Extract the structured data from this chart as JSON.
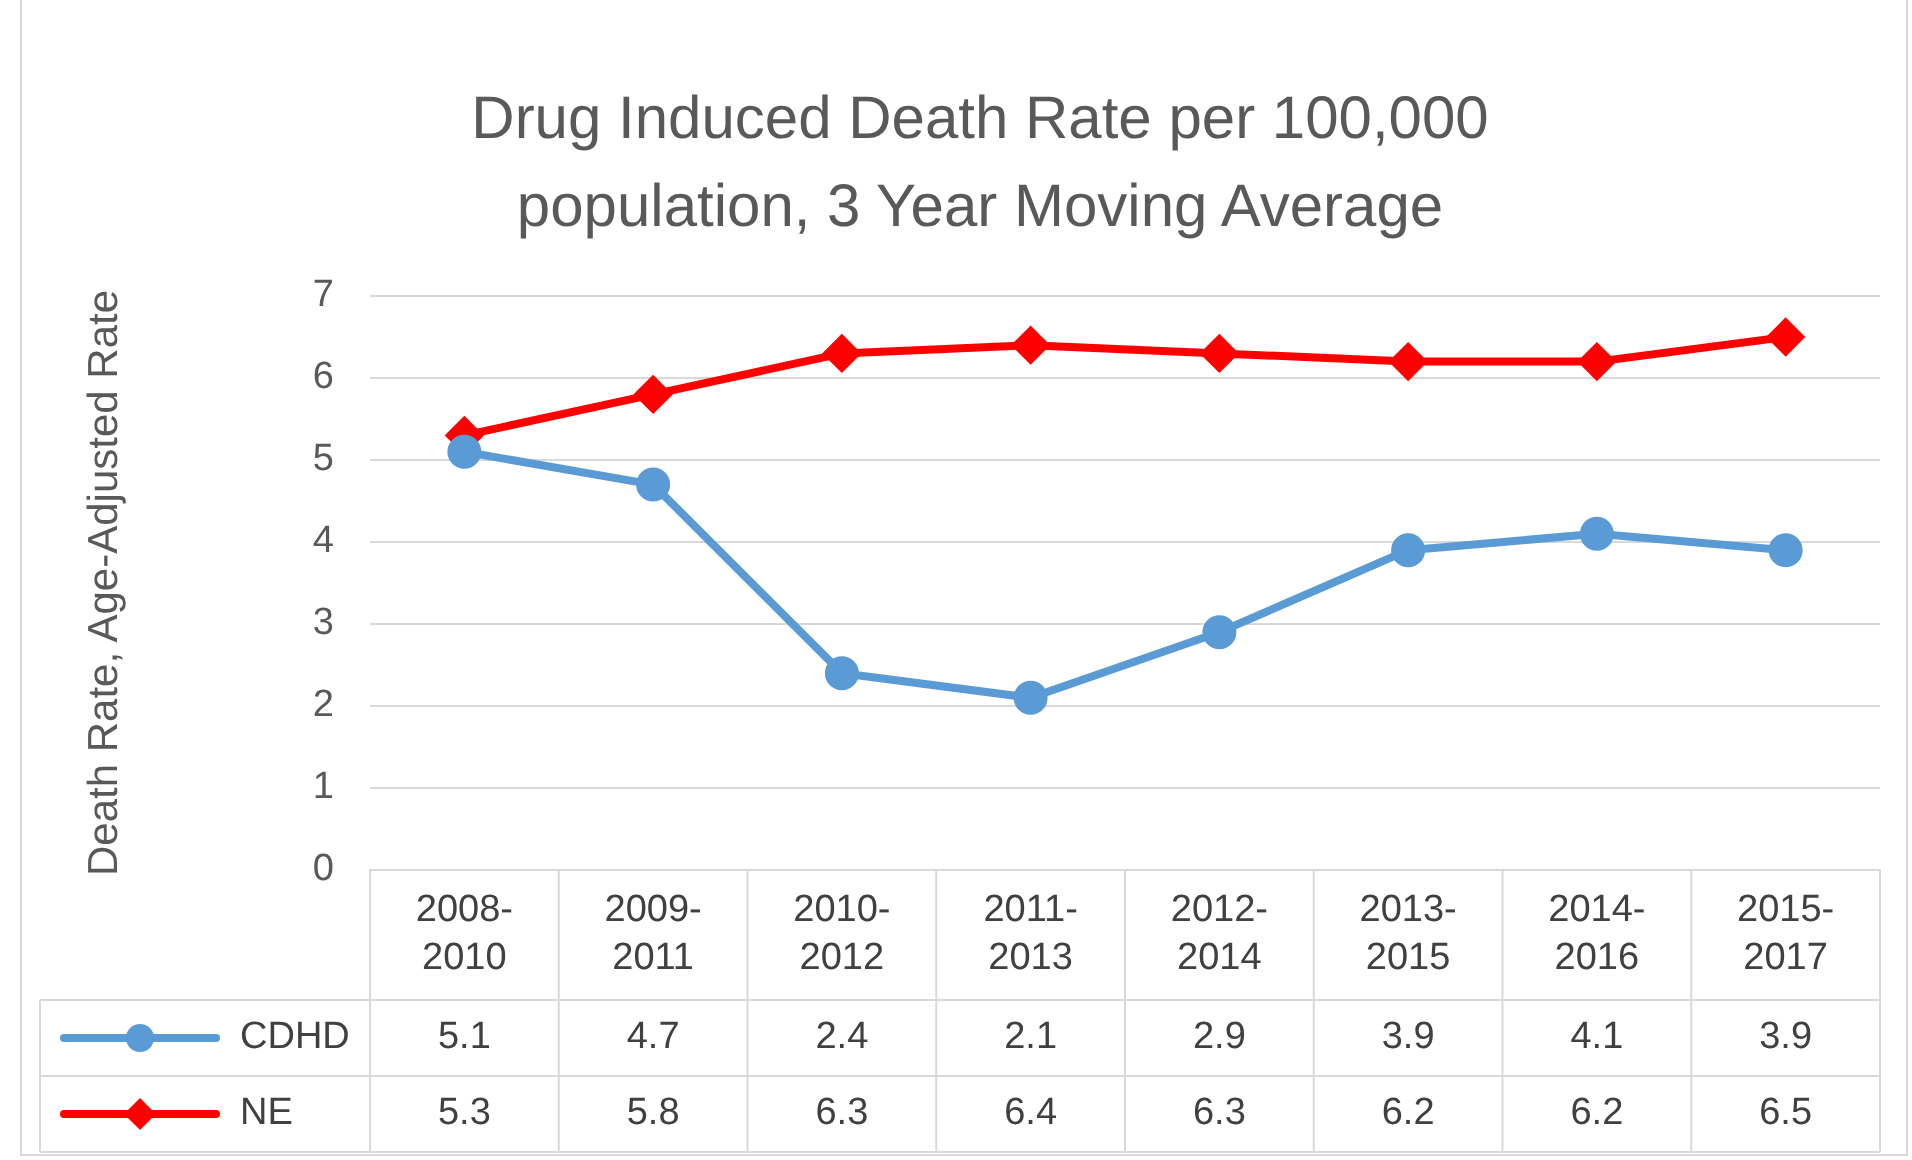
{
  "chart_data": {
    "type": "line",
    "title": "Drug Induced Death Rate per 100,000 population, 3 Year Moving Average",
    "ylabel": "Death Rate, Age-Adjusted Rate",
    "categories": [
      "2008-2010",
      "2009-2011",
      "2010-2012",
      "2011-2013",
      "2012-2014",
      "2013-2015",
      "2014-2016",
      "2015-2017"
    ],
    "series": [
      {
        "name": "CDHD",
        "color": "#5b9bd5",
        "marker": "circle",
        "values": [
          5.1,
          4.7,
          2.4,
          2.1,
          2.9,
          3.9,
          4.1,
          3.9
        ]
      },
      {
        "name": "NE",
        "color": "#ff0000",
        "marker": "diamond",
        "values": [
          5.3,
          5.8,
          6.3,
          6.4,
          6.3,
          6.2,
          6.2,
          6.5
        ]
      }
    ],
    "ylim": [
      0,
      7
    ],
    "yticks": [
      0,
      1,
      2,
      3,
      4,
      5,
      6,
      7
    ],
    "grid": "y",
    "legend": "bottom",
    "data_labels": true
  }
}
